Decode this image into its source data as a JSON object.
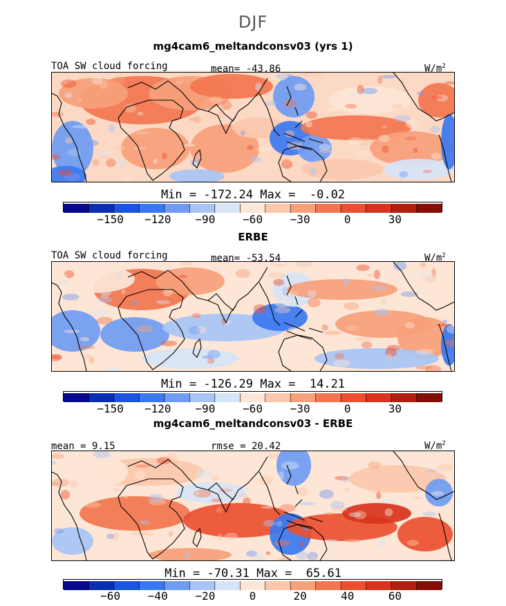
{
  "figure_title": "DJF",
  "panels": [
    {
      "title": "mg4cam6_meltandconsv03 (yrs 1)",
      "variable": "TOA SW cloud forcing",
      "stat_left": "",
      "stat_center": "mean= -43.86",
      "units": "W/m",
      "units_sup": "2",
      "minmax": "Min = -172.24 Max =  -0.02",
      "kind": "abs"
    },
    {
      "title": "ERBE",
      "variable": "TOA SW cloud forcing",
      "stat_left": "",
      "stat_center": "mean= -53.54",
      "units": "W/m",
      "units_sup": "2",
      "minmax": "Min = -126.29 Max =  14.21",
      "kind": "abs"
    },
    {
      "title": "mg4cam6_meltandconsv03 - ERBE",
      "variable": "",
      "stat_left": "mean =  9.15",
      "stat_center": "rmse =  20.42",
      "units": "W/m",
      "units_sup": "2",
      "minmax": "Min = -70.31 Max =  65.61",
      "kind": "diff"
    }
  ],
  "chart_data": [
    {
      "type": "heatmap",
      "title": "mg4cam6_meltandconsv03 (yrs 1)",
      "subtitle": "TOA SW cloud forcing",
      "units": "W/m2",
      "mean": -43.86,
      "min": -172.24,
      "max": -0.02,
      "colorbar_levels": [
        -170,
        -160,
        -150,
        -135,
        -120,
        -105,
        -90,
        -75,
        -60,
        -45,
        -30,
        -15,
        0,
        15,
        30,
        45
      ],
      "colorbar_tick_labels": [
        "-150",
        "-120",
        "-90",
        "-60",
        "-30",
        "0",
        "30"
      ],
      "colorbar_tick_values": [
        -150,
        -120,
        -90,
        -60,
        -30,
        0,
        30
      ],
      "colorbar_range": [
        -180,
        60
      ],
      "map_features": [
        "negative forcing over Sahara/Arabia",
        "strong negative west Pacific warm pool",
        "weak near-zero ocean subtropics"
      ]
    },
    {
      "type": "heatmap",
      "title": "ERBE",
      "subtitle": "TOA SW cloud forcing",
      "units": "W/m2",
      "mean": -53.54,
      "min": -126.29,
      "max": 14.21,
      "colorbar_levels": [
        -170,
        -160,
        -150,
        -135,
        -120,
        -105,
        -90,
        -75,
        -60,
        -45,
        -30,
        -15,
        0,
        15,
        30,
        45
      ],
      "colorbar_tick_labels": [
        "-150",
        "-120",
        "-90",
        "-60",
        "-30",
        "0",
        "30"
      ],
      "colorbar_tick_values": [
        -150,
        -120,
        -90,
        -60,
        -30,
        0,
        30
      ],
      "colorbar_range": [
        -180,
        60
      ]
    },
    {
      "type": "heatmap",
      "title": "mg4cam6_meltandconsv03 - ERBE",
      "units": "W/m2",
      "mean": 9.15,
      "rmse": 20.42,
      "min": -70.31,
      "max": 65.61,
      "colorbar_tick_labels": [
        "-60",
        "-40",
        "-20",
        "0",
        "20",
        "40",
        "60"
      ],
      "colorbar_tick_values": [
        -60,
        -40,
        -20,
        0,
        20,
        40,
        60
      ],
      "colorbar_range": [
        -80,
        80
      ]
    }
  ],
  "colors": {
    "scale": [
      "#08088a",
      "#0a2fb0",
      "#1a55e0",
      "#3a78f0",
      "#6f9cf2",
      "#a8c4f5",
      "#d6e4f7",
      "#fde6d6",
      "#fbc8ad",
      "#f7a07a",
      "#f2764f",
      "#ea5030",
      "#d8341d",
      "#b0200e",
      "#850d05"
    ],
    "land": "#fbd9c4",
    "coast": "#000000"
  }
}
